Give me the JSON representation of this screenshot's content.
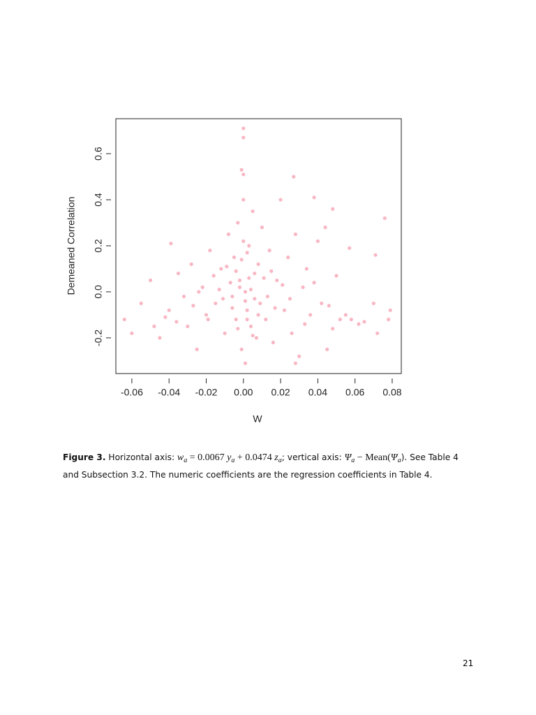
{
  "chart_data": {
    "type": "scatter",
    "xlabel": "W",
    "ylabel": "Demeaned Correlation",
    "color": "#f8b7c3",
    "xlim": [
      -0.0686,
      0.0849
    ],
    "ylim": [
      -0.355,
      0.752
    ],
    "xticks": [
      -0.06,
      -0.04,
      -0.02,
      {
        "value": 0,
        "label": "0.00"
      },
      0.02,
      0.04,
      0.06,
      0.08
    ],
    "yticks": [
      -0.2,
      {
        "value": 0,
        "label": "0.0"
      },
      0.2,
      0.4,
      0.6
    ],
    "x": [
      0.0,
      0.0,
      -0.001,
      0.0,
      0.027,
      0.038,
      0.048,
      0.076,
      -0.039,
      0.071,
      0.057,
      -0.064,
      -0.06,
      -0.055,
      -0.05,
      -0.045,
      -0.04,
      -0.035,
      -0.03,
      -0.028,
      -0.025,
      -0.022,
      -0.02,
      -0.018,
      -0.015,
      -0.012,
      -0.01,
      -0.008,
      -0.006,
      -0.005,
      -0.004,
      -0.003,
      -0.002,
      -0.001,
      0.0,
      0.001,
      0.002,
      0.003,
      0.004,
      0.005,
      0.006,
      0.007,
      0.008,
      0.009,
      0.01,
      0.012,
      0.014,
      0.016,
      0.018,
      0.02,
      0.022,
      0.024,
      0.026,
      0.028,
      0.03,
      0.032,
      0.034,
      0.036,
      0.04,
      0.042,
      0.044,
      0.046,
      0.048,
      0.05,
      0.052,
      0.055,
      0.058,
      0.062,
      0.065,
      0.07,
      0.072,
      0.078,
      0.079,
      0.045,
      0.028,
      0.001,
      -0.002,
      0.001,
      0.003,
      -0.004,
      0.002,
      -0.001,
      0.004,
      -0.006,
      0.006,
      -0.003,
      0.0,
      0.002,
      -0.007,
      0.008,
      -0.009,
      0.005,
      -0.011,
      0.011,
      -0.013,
      0.013,
      -0.016,
      0.015,
      -0.019,
      0.017,
      -0.024,
      -0.027,
      0.021,
      0.025,
      -0.032,
      -0.036,
      0.033,
      0.038,
      -0.042,
      -0.048
    ],
    "values": [
      0.71,
      0.67,
      0.53,
      0.51,
      0.5,
      0.41,
      0.36,
      0.32,
      0.21,
      0.16,
      0.19,
      -0.12,
      -0.18,
      -0.05,
      0.05,
      -0.2,
      -0.08,
      0.08,
      -0.15,
      0.12,
      -0.25,
      0.02,
      -0.1,
      0.18,
      -0.05,
      0.1,
      -0.18,
      0.25,
      -0.02,
      0.15,
      -0.12,
      0.3,
      0.05,
      -0.25,
      0.4,
      0.0,
      -0.08,
      0.2,
      -0.15,
      0.35,
      0.08,
      -0.2,
      0.12,
      -0.05,
      0.28,
      -0.12,
      0.18,
      -0.22,
      0.05,
      0.4,
      -0.08,
      0.15,
      -0.18,
      0.25,
      -0.28,
      0.02,
      0.1,
      -0.1,
      0.22,
      -0.05,
      0.28,
      -0.06,
      -0.16,
      0.07,
      -0.12,
      -0.1,
      -0.12,
      -0.14,
      -0.13,
      -0.05,
      -0.18,
      -0.12,
      -0.08,
      -0.25,
      -0.31,
      -0.31,
      0.02,
      -0.04,
      0.06,
      0.09,
      -0.12,
      0.14,
      0.01,
      -0.07,
      -0.03,
      -0.16,
      0.22,
      0.17,
      0.04,
      -0.1,
      0.11,
      -0.19,
      -0.03,
      0.06,
      0.01,
      -0.02,
      0.07,
      0.09,
      -0.12,
      -0.07,
      0.0,
      -0.06,
      0.03,
      -0.03,
      -0.02,
      -0.13,
      -0.14,
      0.04,
      -0.11,
      -0.15
    ]
  },
  "caption": [
    "Figure 3.",
    " Horizontal axis: ",
    "w",
    "a",
    " = 0.0067 ",
    "y",
    "a",
    " + 0.0474 ",
    "z",
    "a",
    "; vertical axis: ",
    "Ψ",
    "a",
    " − Mean(",
    "Ψ",
    "a",
    ").  See Table 4 and Subsection 3.2.  The numeric coefficients are the regression coefficients in Table 4."
  ],
  "page_number": "21"
}
